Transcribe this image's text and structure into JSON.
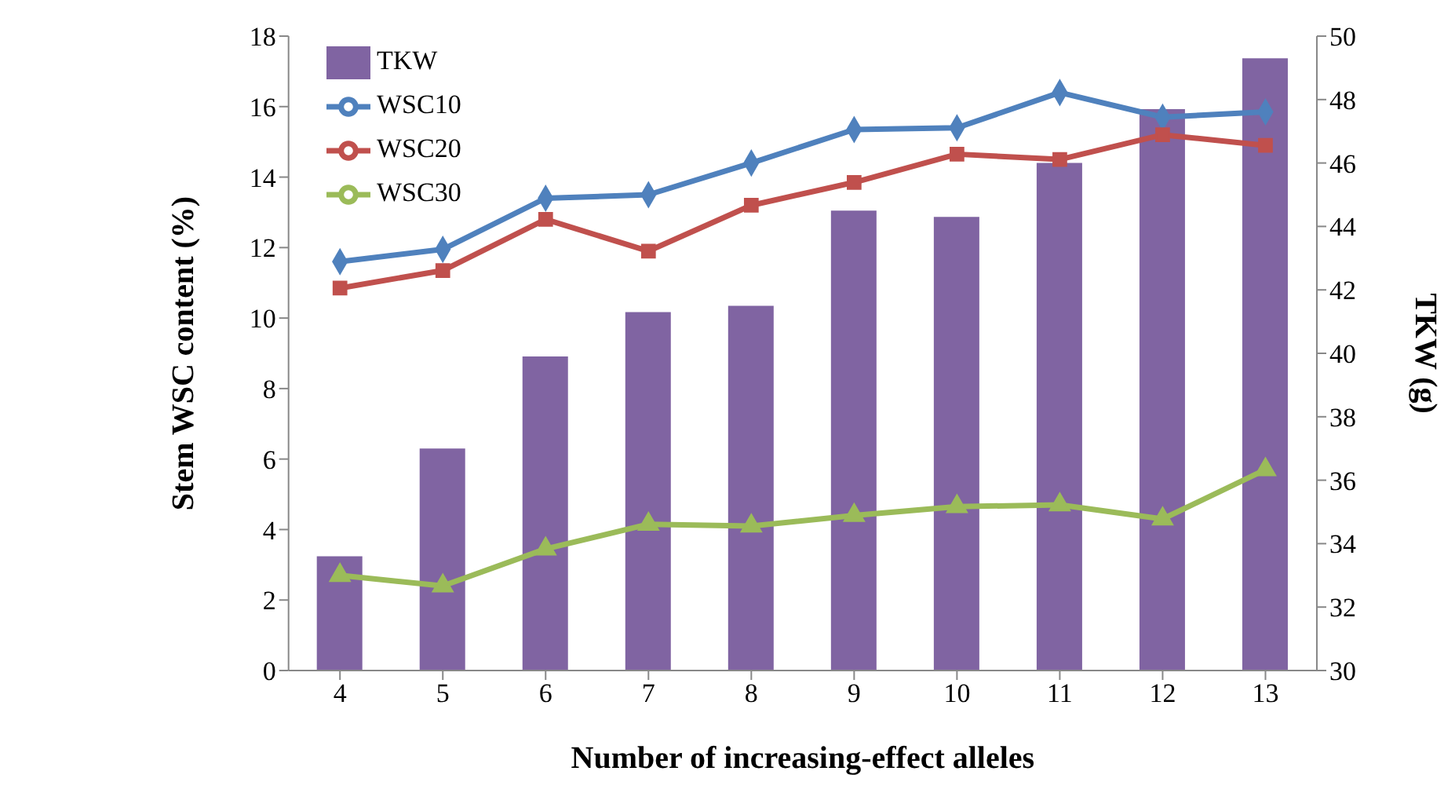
{
  "chart_data": {
    "type": "line",
    "xlabel": "Number of increasing-effect alleles",
    "ylabel": "Stem WSC content (%)",
    "y2label": "TKW (g)",
    "categories": [
      "4",
      "5",
      "6",
      "7",
      "8",
      "9",
      "10",
      "11",
      "12",
      "13"
    ],
    "series": [
      {
        "name": "TKW",
        "type": "bar",
        "axis": "y2",
        "color": "#8064a2",
        "values": [
          33.6,
          37.0,
          39.9,
          41.3,
          41.5,
          44.5,
          44.3,
          46.0,
          47.7,
          49.3
        ]
      },
      {
        "name": "WSC10",
        "marker": "diamond",
        "color": "#4f81bd",
        "values": [
          11.6,
          11.95,
          13.4,
          13.5,
          14.4,
          15.35,
          15.4,
          16.4,
          15.7,
          15.85
        ]
      },
      {
        "name": "WSC20",
        "marker": "square",
        "color": "#c0504d",
        "values": [
          10.85,
          11.35,
          12.8,
          11.9,
          13.2,
          13.85,
          14.65,
          14.5,
          15.2,
          14.9
        ]
      },
      {
        "name": "WSC30",
        "marker": "triangle",
        "color": "#9bbb59",
        "values": [
          2.7,
          2.4,
          3.45,
          4.15,
          4.1,
          4.4,
          4.65,
          4.7,
          4.3,
          5.7
        ]
      }
    ],
    "ylim": [
      0,
      18
    ],
    "yticks": [
      0,
      2,
      4,
      6,
      8,
      10,
      12,
      14,
      16,
      18
    ],
    "y2lim": [
      30,
      50
    ],
    "y2ticks": [
      30,
      32,
      34,
      36,
      38,
      40,
      42,
      44,
      46,
      48,
      50
    ],
    "legend": "top left",
    "grid": false
  }
}
